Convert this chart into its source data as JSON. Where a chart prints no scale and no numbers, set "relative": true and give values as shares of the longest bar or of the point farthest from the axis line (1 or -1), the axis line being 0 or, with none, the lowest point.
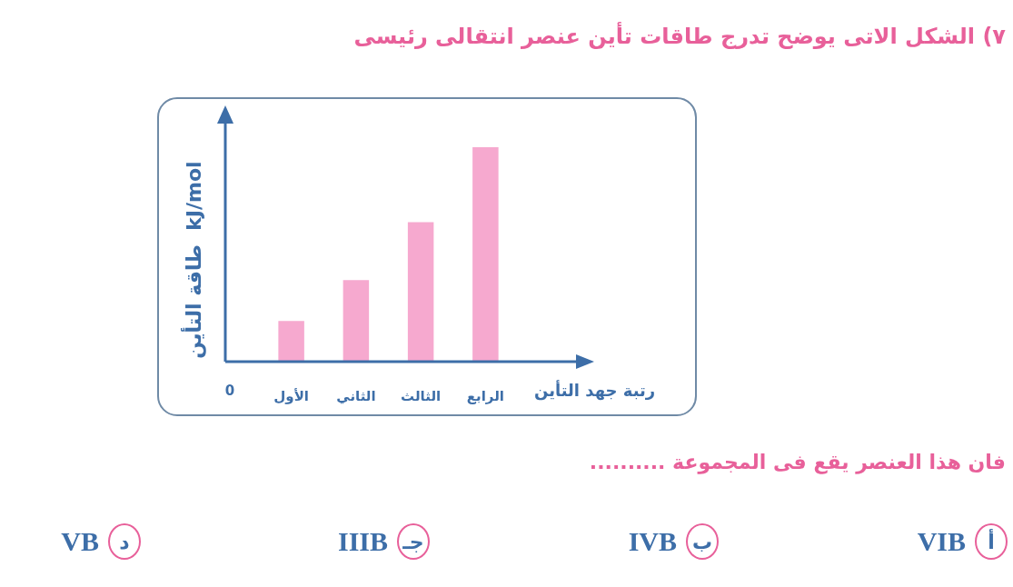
{
  "chart_data": {
    "type": "bar",
    "title": "٧) الشكل الاتى يوضح تدرج طاقات تأين عنصر انتقالى رئيسى",
    "xlabel": "رتبة جهد التأين",
    "ylabel": "طاقة التأين  kJ/mol",
    "categories": [
      "الأول",
      "الثاني",
      "الثالث",
      "الرابع"
    ],
    "values": [
      0.19,
      0.38,
      0.65,
      1
    ],
    "color": "#f6a9cf",
    "relative": true,
    "annotations": [
      "0",
      "فان هذا العنصر يقع فى المجموعة ..........",
      "أ",
      "VIB",
      "ب",
      "IVB",
      "جـ",
      "IIIB",
      "د",
      "VB"
    ]
  }
}
